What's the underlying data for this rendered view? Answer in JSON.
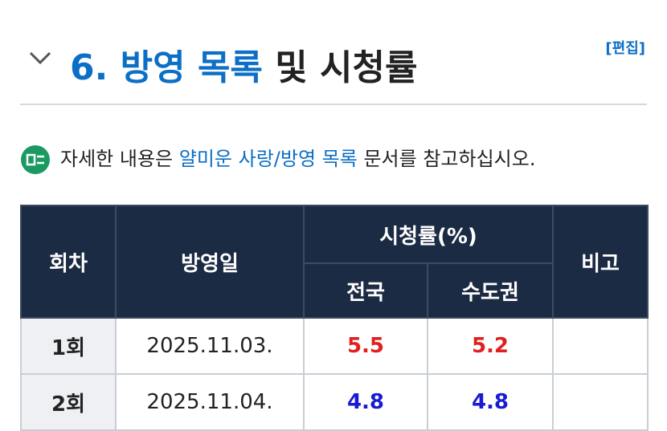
{
  "header": {
    "number": "6.",
    "title_link": "방영 목록",
    "title_rest": "및 시청률",
    "edit": "[편집]"
  },
  "note": {
    "prefix": "자세한 내용은",
    "link": "얄미운 사랑/방영 목록",
    "suffix": "문서를 참고하십시오."
  },
  "table": {
    "headers": {
      "episode": "회차",
      "date": "방영일",
      "ratings": "시청률(%)",
      "national": "전국",
      "capital": "수도권",
      "remarks": "비고"
    },
    "rows": [
      {
        "episode": "1회",
        "date": "2025.11.03.",
        "national": 5.5,
        "capital": 5.2,
        "color": "#e02020"
      },
      {
        "episode": "2회",
        "date": "2025.11.04.",
        "national": 4.8,
        "capital": 4.8,
        "color": "#1a1ad0"
      }
    ]
  }
}
